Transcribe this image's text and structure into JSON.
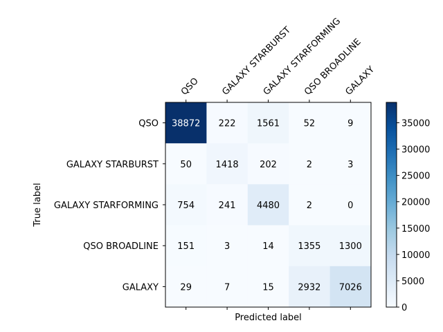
{
  "chart_data": {
    "type": "heatmap",
    "subtype": "confusion-matrix",
    "row_labels": [
      "QSO",
      "GALAXY STARBURST",
      "GALAXY STARFORMING",
      "QSO BROADLINE",
      "GALAXY"
    ],
    "col_labels": [
      "QSO",
      "GALAXY STARBURST",
      "GALAXY STARFORMING",
      "QSO BROADLINE",
      "GALAXY"
    ],
    "values": [
      [
        38872,
        222,
        1561,
        52,
        9
      ],
      [
        50,
        1418,
        202,
        2,
        3
      ],
      [
        754,
        241,
        4480,
        2,
        0
      ],
      [
        151,
        3,
        14,
        1355,
        1300
      ],
      [
        29,
        7,
        15,
        2932,
        7026
      ]
    ],
    "xlabel": "Predicted label",
    "ylabel": "True label",
    "colormap": "Blues",
    "colorbar": {
      "min": 0,
      "max": 38872,
      "ticks": [
        0,
        5000,
        10000,
        15000,
        20000,
        25000,
        30000,
        35000
      ]
    },
    "colors": {
      "low": "#f7fbff",
      "high": "#08306b",
      "text_dark": "#000000",
      "text_light": "#ffffff"
    }
  }
}
